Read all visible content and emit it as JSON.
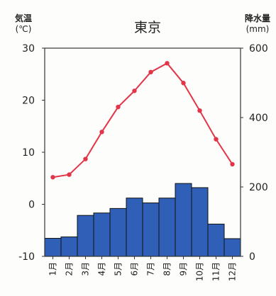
{
  "chart_data": {
    "type": "bar+line",
    "title": "東京",
    "left_axis": {
      "label_line1": "気温",
      "label_line2": "(℃)",
      "range": [
        -10,
        30
      ],
      "ticks": [
        30,
        20,
        10,
        0,
        -10
      ]
    },
    "right_axis": {
      "label_line1": "降水量",
      "label_line2": "(mm)",
      "range": [
        0,
        600
      ],
      "ticks": [
        600,
        400,
        200,
        0
      ]
    },
    "categories": [
      "1月",
      "2月",
      "3月",
      "4月",
      "5月",
      "6月",
      "7月",
      "8月",
      "9月",
      "10月",
      "11月",
      "12月"
    ],
    "series": [
      {
        "kind": "bar",
        "axis": "right",
        "values": [
          52,
          56,
          118,
          125,
          138,
          168,
          154,
          168,
          210,
          198,
          93,
          51
        ]
      },
      {
        "kind": "line",
        "axis": "left",
        "values": [
          5.2,
          5.7,
          8.7,
          13.9,
          18.7,
          21.8,
          25.4,
          27.1,
          23.3,
          18.0,
          12.5,
          7.7
        ]
      }
    ],
    "colors": {
      "bar": "#2f5fb6",
      "line": "#e2354a"
    }
  }
}
